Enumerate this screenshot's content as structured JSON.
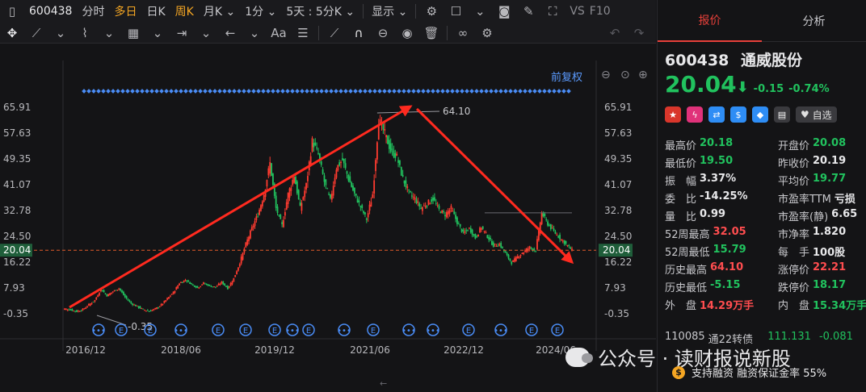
{
  "toolbar": {
    "code": "600438",
    "periods": [
      "分时",
      "多日",
      "日K",
      "周K",
      "月K",
      "1分",
      "5天 : 5分K"
    ],
    "display_label": "显示",
    "vs_label": "VS",
    "f10_label": "F10"
  },
  "chart": {
    "fq_label": "前复权",
    "current_price_tag": "20.04",
    "max_label": "64.10",
    "min_label": "-0.35",
    "x_axis_labels": [
      "2016/12",
      "2018/06",
      "2019/12",
      "2021/06",
      "2022/12",
      "2024/06"
    ],
    "y_axis_labels": [
      "65.91",
      "57.63",
      "49.35",
      "41.07",
      "32.78",
      "24.50",
      "16.22",
      "7.93",
      "-0.35"
    ],
    "colors": {
      "up": "#ff3b30",
      "down": "#21c25e",
      "arrow": "#ff2a1f",
      "price_line": "#e05a2a"
    }
  },
  "chart_data": {
    "type": "candlestick",
    "series": [
      {
        "name": "600438",
        "close": [
          1.2,
          0.9,
          0.4,
          1.0,
          2.5,
          4.0,
          7.5,
          5.5,
          6.8,
          7.8,
          5.0,
          3.0,
          2.0,
          1.0,
          0.5,
          1.2,
          2.5,
          4.5,
          6.5,
          9.5,
          10.5,
          9.2,
          8.0,
          9.5,
          8.6,
          8.2,
          9.8,
          7.8,
          11.0,
          16.0,
          22.0,
          27.0,
          31.5,
          38.0,
          48.0,
          33.5,
          28.0,
          38.0,
          44.0,
          33.5,
          41.0,
          55.0,
          51.0,
          42.0,
          36.0,
          46.5,
          49.0,
          43.0,
          38.0,
          34.0,
          30.0,
          38.0,
          62.0,
          57.5,
          52.0,
          50.0,
          43.0,
          38.5,
          36.5,
          33.5,
          35.0,
          36.5,
          33.0,
          31.5,
          33.5,
          29.0,
          25.5,
          27.0,
          24.0,
          27.5,
          24.5,
          21.5,
          22.0,
          19.0,
          16.0,
          18.0,
          19.5,
          21.0,
          20.0,
          32.0,
          28.5,
          26.0,
          24.0,
          22.0,
          20.04
        ]
      }
    ],
    "x_labels": [
      "2016/12",
      "2018/06",
      "2019/12",
      "2021/06",
      "2022/12",
      "2024/06"
    ],
    "ylim": [
      -0.35,
      65.91
    ],
    "yticks": [
      "65.91",
      "57.63",
      "49.35",
      "41.07",
      "32.78",
      "24.50",
      "16.22",
      "7.93",
      "-0.35"
    ],
    "max": 64.1,
    "min": -0.35
  },
  "quote": {
    "code": "600438",
    "name": "通威股份",
    "price": "20.04",
    "arrow": "⬇",
    "change": "-0.15",
    "change_pct": "-0.74%",
    "rows": [
      [
        {
          "label": "最高价",
          "value": "20.18",
          "cls": "dn"
        },
        {
          "label": "开盘价",
          "value": "20.08",
          "cls": "dn"
        }
      ],
      [
        {
          "label": "最低价",
          "value": "19.50",
          "cls": "dn"
        },
        {
          "label": "昨收价",
          "value": "20.19",
          "cls": "wh"
        }
      ],
      [
        {
          "label": "振　幅",
          "value": "3.37%",
          "cls": "wh"
        },
        {
          "label": "平均价",
          "value": "19.77",
          "cls": "dn"
        }
      ],
      [
        {
          "label": "委　比",
          "value": "-14.25%",
          "cls": "wh"
        },
        {
          "label": "市盈率TTM",
          "value": "亏损",
          "cls": "wh"
        }
      ],
      [
        {
          "label": "量　比",
          "value": "0.99",
          "cls": "wh"
        },
        {
          "label": "市盈率(静)",
          "value": "6.65",
          "cls": "wh"
        }
      ],
      [
        {
          "label": "52周最高",
          "value": "32.05",
          "cls": "up"
        },
        {
          "label": "市净率",
          "value": "1.820",
          "cls": "wh"
        }
      ],
      [
        {
          "label": "52周最低",
          "value": "15.79",
          "cls": "dn"
        },
        {
          "label": "每　手",
          "value": "100股",
          "cls": "wh"
        }
      ],
      [
        {
          "label": "历史最高",
          "value": "64.10",
          "cls": "up"
        },
        {
          "label": "涨停价",
          "value": "22.21",
          "cls": "up"
        }
      ],
      [
        {
          "label": "历史最低",
          "value": "-5.15",
          "cls": "dn"
        },
        {
          "label": "跌停价",
          "value": "18.17",
          "cls": "dn"
        }
      ],
      [
        {
          "label": "外　盘",
          "value": "14.29万手",
          "cls": "up"
        },
        {
          "label": "内　盘",
          "value": "15.34万手",
          "cls": "dn"
        }
      ]
    ]
  },
  "panel": {
    "tabs": [
      "报价",
      "分析"
    ],
    "add_watch": "自选",
    "bond_code": "110085",
    "bond_name": "通22转债",
    "bond_price": "111.131",
    "bond_change": "-0.081",
    "margin_text": "支持融资 融资保证金率 55%",
    "watermark": "公众号 · 读财报说新股"
  }
}
